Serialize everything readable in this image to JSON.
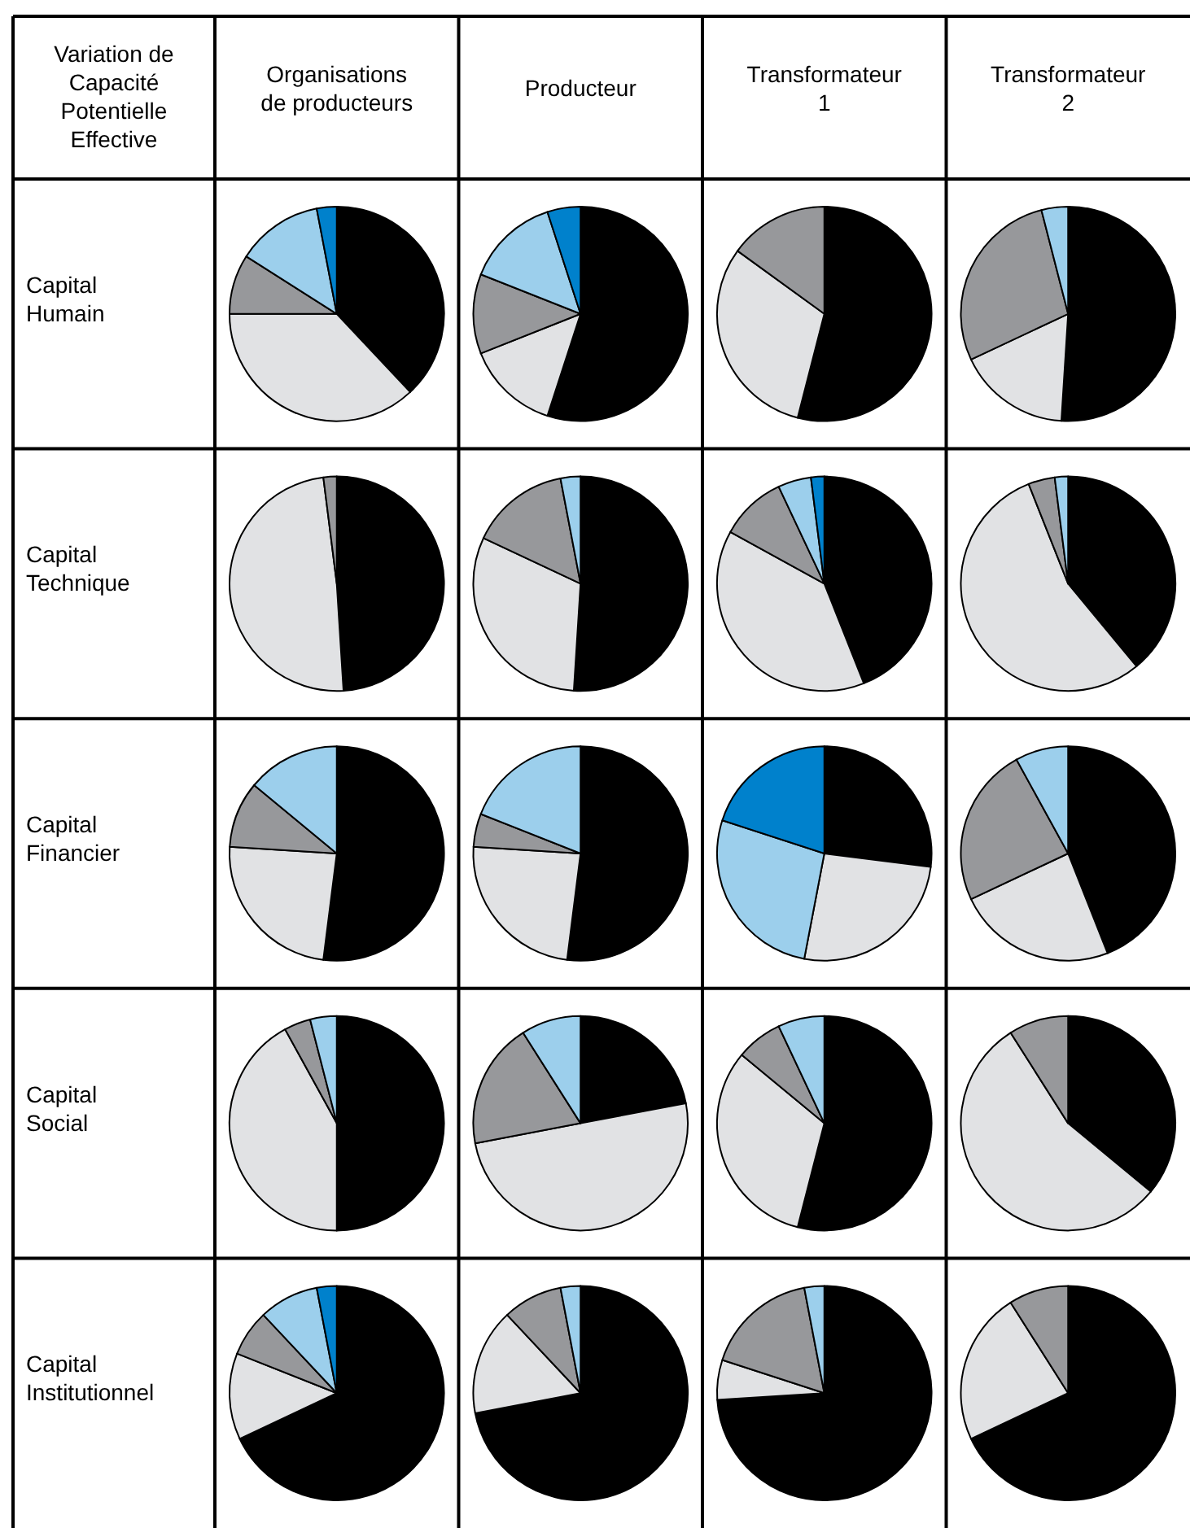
{
  "chart_data": [
    {
      "type": "other",
      "title": "Variation de\nCapacité\nPotentielle\nEffective",
      "categories": [
        "Organisations\nde producteurs",
        "Producteur",
        "Transformateur\n1",
        "Transformateur\n2"
      ],
      "y_categories": [
        "Capital\nHumain",
        "Capital\nTechnique",
        "Capital\nFinancier",
        "Capital\nSocial",
        "Capital\nInstitutionnel"
      ]
    },
    {
      "type": "pie",
      "categories": [
        null,
        null,
        null,
        null,
        null
      ],
      "values": [
        38,
        37,
        9,
        13,
        3
      ],
      "colors": [
        "#000000",
        "#e1e2e4",
        "#97989b",
        "#9ccfec",
        "#0081cc"
      ]
    },
    {
      "type": "pie",
      "categories": [
        null,
        null,
        null,
        null,
        null
      ],
      "values": [
        55,
        14,
        12,
        14,
        5
      ],
      "colors": [
        "#000000",
        "#e1e2e4",
        "#97989b",
        "#9ccfec",
        "#0081cc"
      ]
    },
    {
      "type": "pie",
      "categories": [
        null,
        null,
        null
      ],
      "values": [
        54,
        31,
        15
      ],
      "colors": [
        "#000000",
        "#e1e2e4",
        "#97989b"
      ]
    },
    {
      "type": "pie",
      "categories": [
        null,
        null,
        null,
        null
      ],
      "values": [
        51,
        17,
        28,
        4
      ],
      "colors": [
        "#000000",
        "#e1e2e4",
        "#97989b",
        "#9ccfec"
      ]
    },
    {
      "type": "pie",
      "categories": [
        null,
        null,
        null
      ],
      "values": [
        49,
        49,
        2
      ],
      "colors": [
        "#000000",
        "#e1e2e4",
        "#97989b"
      ]
    },
    {
      "type": "pie",
      "categories": [
        null,
        null,
        null,
        null
      ],
      "values": [
        51,
        31,
        15,
        3
      ],
      "colors": [
        "#000000",
        "#e1e2e4",
        "#97989b",
        "#9ccfec"
      ]
    },
    {
      "type": "pie",
      "categories": [
        null,
        null,
        null,
        null,
        null
      ],
      "values": [
        44,
        39,
        10,
        5,
        2
      ],
      "colors": [
        "#000000",
        "#e1e2e4",
        "#97989b",
        "#9ccfec",
        "#0081cc"
      ]
    },
    {
      "type": "pie",
      "categories": [
        null,
        null,
        null,
        null
      ],
      "values": [
        39,
        55,
        4,
        2
      ],
      "colors": [
        "#000000",
        "#e1e2e4",
        "#97989b",
        "#9ccfec"
      ]
    },
    {
      "type": "pie",
      "categories": [
        null,
        null,
        null,
        null
      ],
      "values": [
        52,
        24,
        10,
        14
      ],
      "colors": [
        "#000000",
        "#e1e2e4",
        "#97989b",
        "#9ccfec"
      ]
    },
    {
      "type": "pie",
      "categories": [
        null,
        null,
        null,
        null
      ],
      "values": [
        52,
        24,
        5,
        19
      ],
      "colors": [
        "#000000",
        "#e1e2e4",
        "#97989b",
        "#9ccfec"
      ]
    },
    {
      "type": "pie",
      "categories": [
        null,
        null,
        null,
        null
      ],
      "values": [
        27,
        26,
        27,
        20
      ],
      "colors": [
        "#000000",
        "#e1e2e4",
        "#9ccfec",
        "#0081cc"
      ]
    },
    {
      "type": "pie",
      "categories": [
        null,
        null,
        null,
        null
      ],
      "values": [
        44,
        24,
        24,
        8
      ],
      "colors": [
        "#000000",
        "#e1e2e4",
        "#97989b",
        "#9ccfec"
      ]
    },
    {
      "type": "pie",
      "categories": [
        null,
        null,
        null,
        null
      ],
      "values": [
        50,
        42,
        4,
        4
      ],
      "colors": [
        "#000000",
        "#e1e2e4",
        "#97989b",
        "#9ccfec"
      ]
    },
    {
      "type": "pie",
      "categories": [
        null,
        null,
        null,
        null
      ],
      "values": [
        22,
        50,
        19,
        9
      ],
      "colors": [
        "#000000",
        "#e1e2e4",
        "#97989b",
        "#9ccfec"
      ]
    },
    {
      "type": "pie",
      "categories": [
        null,
        null,
        null,
        null
      ],
      "values": [
        54,
        32,
        7,
        7
      ],
      "colors": [
        "#000000",
        "#e1e2e4",
        "#97989b",
        "#9ccfec"
      ]
    },
    {
      "type": "pie",
      "categories": [
        null,
        null,
        null
      ],
      "values": [
        36,
        55,
        9
      ],
      "colors": [
        "#000000",
        "#e1e2e4",
        "#97989b"
      ]
    },
    {
      "type": "pie",
      "categories": [
        null,
        null,
        null,
        null,
        null
      ],
      "values": [
        68,
        13,
        7,
        9,
        3
      ],
      "colors": [
        "#000000",
        "#e1e2e4",
        "#97989b",
        "#9ccfec",
        "#0081cc"
      ]
    },
    {
      "type": "pie",
      "categories": [
        null,
        null,
        null,
        null
      ],
      "values": [
        72,
        16,
        9,
        3
      ],
      "colors": [
        "#000000",
        "#e1e2e4",
        "#97989b",
        "#9ccfec"
      ]
    },
    {
      "type": "pie",
      "categories": [
        null,
        null,
        null,
        null
      ],
      "values": [
        74,
        6,
        17,
        3
      ],
      "colors": [
        "#000000",
        "#e1e2e4",
        "#97989b",
        "#9ccfec"
      ]
    },
    {
      "type": "pie",
      "categories": [
        null,
        null,
        null
      ],
      "values": [
        68,
        23,
        9
      ],
      "colors": [
        "#000000",
        "#e1e2e4",
        "#97989b"
      ]
    }
  ]
}
